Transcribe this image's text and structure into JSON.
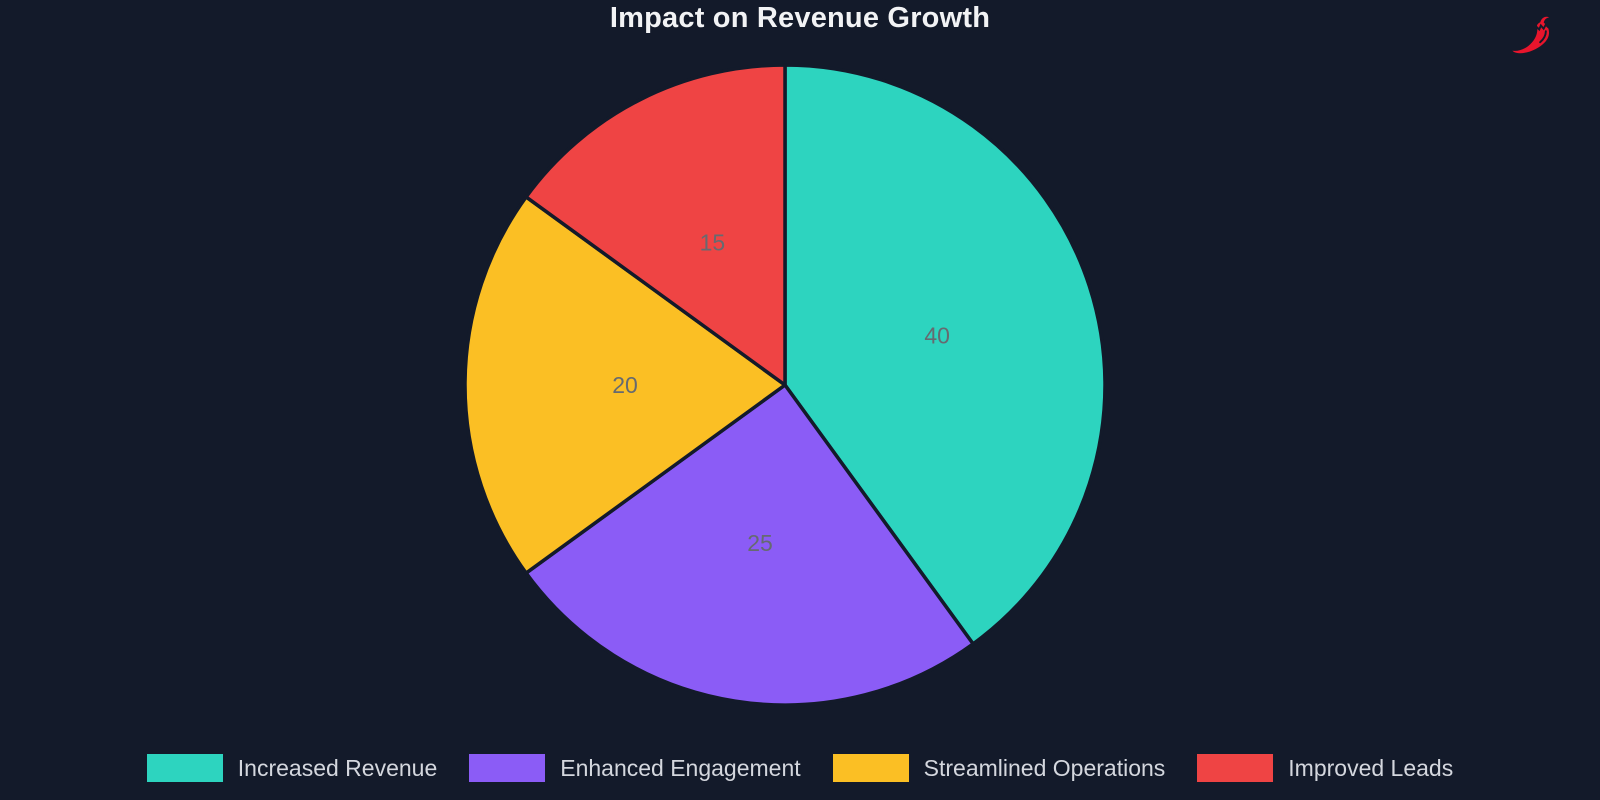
{
  "page": {
    "background": "#131a2a"
  },
  "logo": {
    "name": "chili-pepper",
    "color": "#e8152c"
  },
  "chart_data": {
    "type": "pie",
    "title": "Impact on Revenue Growth",
    "categories": [
      "Increased Revenue",
      "Enhanced Engagement",
      "Streamlined Operations",
      "Improved Leads"
    ],
    "values": [
      40,
      25,
      20,
      15
    ],
    "colors": [
      "#2dd4bf",
      "#8b5cf6",
      "#fbbf24",
      "#ef4444"
    ],
    "value_labels": [
      "40",
      "25",
      "20",
      "15"
    ],
    "start_angle_deg": 0,
    "direction": "clockwise",
    "label_radius_ratio": 0.5,
    "label_color": "#666a70",
    "slice_border_color": "#131a2a",
    "slice_border_width": 3.5,
    "title_color": "#f2f3f5",
    "legend_position": "bottom",
    "legend_text_color": "#d4d7de",
    "background": "#131a2a"
  }
}
